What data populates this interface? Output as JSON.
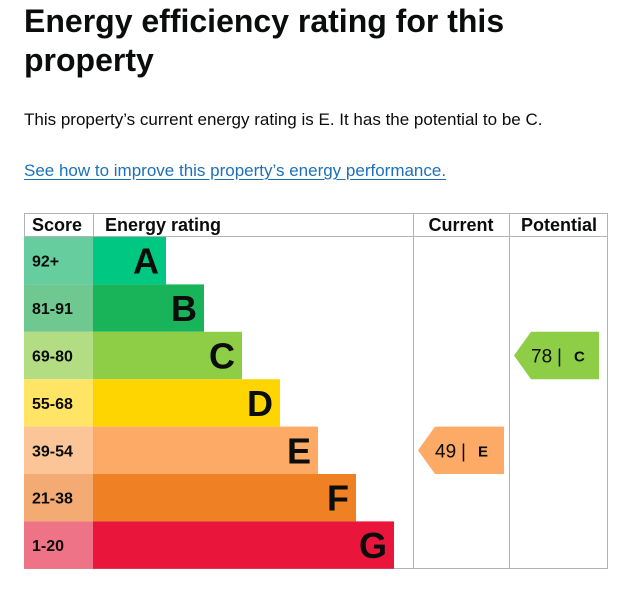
{
  "page": {
    "title": "Energy efficiency rating for this property",
    "summary": "This property’s current energy rating is E. It has the potential to be C.",
    "improve_link": "See how to improve this property’s energy performance."
  },
  "chart": {
    "headers": {
      "score": "Score",
      "rating": "Energy rating",
      "current": "Current",
      "potential": "Potential"
    },
    "bands": [
      {
        "score": "92+",
        "letter": "A",
        "color": "#00c781",
        "score_color": "#65cd9e"
      },
      {
        "score": "81-91",
        "letter": "B",
        "color": "#19b459",
        "score_color": "#6fc88f"
      },
      {
        "score": "69-80",
        "letter": "C",
        "color": "#8dce46",
        "score_color": "#b3dd83"
      },
      {
        "score": "55-68",
        "letter": "D",
        "color": "#ffd500",
        "score_color": "#ffe466"
      },
      {
        "score": "39-54",
        "letter": "E",
        "color": "#fcaa65",
        "score_color": "#fbc598"
      },
      {
        "score": "21-38",
        "letter": "F",
        "color": "#ef8023",
        "score_color": "#f3aa73"
      },
      {
        "score": "1-20",
        "letter": "G",
        "color": "#e9153b",
        "score_color": "#ef7387"
      }
    ],
    "current": {
      "value": "49",
      "separator": "|",
      "letter": "E",
      "color": "#fcaa65"
    },
    "potential": {
      "value": "78",
      "separator": "|",
      "letter": "C",
      "color": "#8dce46"
    }
  }
}
